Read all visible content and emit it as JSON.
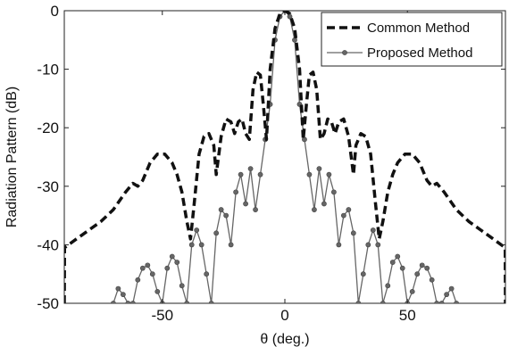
{
  "chart_data": {
    "type": "line",
    "xlabel": "θ (deg.)",
    "ylabel": "Radiation Pattern (dB)",
    "xlim": [
      -90,
      90
    ],
    "ylim": [
      -50,
      0
    ],
    "x_ticks": [
      -50,
      0,
      50
    ],
    "x_tick_labels": [
      "-50",
      "0",
      "50"
    ],
    "y_ticks": [
      0,
      -10,
      -20,
      -30,
      -40,
      -50
    ],
    "y_tick_labels": [
      "0",
      "-10",
      "-20",
      "-30",
      "-40",
      "-50"
    ],
    "grid": false,
    "legend_position": "top-right",
    "series": [
      {
        "name": "Common Method",
        "style": "dashed",
        "color": "#111111",
        "x": [
          -90,
          -89.9,
          -85,
          -80,
          -75,
          -70,
          -65,
          -62,
          -60,
          -58,
          -55,
          -52,
          -49,
          -46,
          -44,
          -42,
          -40,
          -38.5,
          -37,
          -35,
          -33,
          -31,
          -29,
          -28,
          -26,
          -24,
          -22,
          -20.5,
          -19,
          -17.5,
          -16,
          -14.5,
          -13,
          -11.5,
          -10,
          -8.8,
          -7.5,
          -6,
          -4,
          -2,
          0,
          2,
          4,
          6,
          7.5,
          8.8,
          10,
          11.5,
          13,
          14.5,
          16,
          17.5,
          19,
          20.5,
          22,
          24,
          26,
          28,
          29,
          31,
          33,
          35,
          37,
          38.5,
          40,
          42,
          44,
          46,
          49,
          52,
          55,
          58,
          60,
          62,
          65,
          70,
          75,
          80,
          85,
          89.9,
          90
        ],
        "y": [
          -50,
          -40.5,
          -39,
          -37.5,
          -36,
          -34,
          -31,
          -29.5,
          -30,
          -29,
          -26,
          -24.5,
          -24.5,
          -26,
          -28,
          -31,
          -36,
          -39,
          -33,
          -24.5,
          -21.5,
          -21,
          -23,
          -28,
          -21.5,
          -18.5,
          -19,
          -21,
          -19,
          -18.5,
          -21,
          -22,
          -13.5,
          -10.5,
          -11,
          -16,
          -22,
          -10,
          -3,
          -0.5,
          0,
          -0.5,
          -3,
          -10,
          -22,
          -16,
          -11,
          -10.5,
          -13.5,
          -22,
          -21,
          -18.5,
          -19,
          -21,
          -19,
          -18.5,
          -21.5,
          -28,
          -23,
          -21,
          -21.5,
          -24.5,
          -33,
          -39,
          -36,
          -31,
          -28,
          -26,
          -24.5,
          -24.5,
          -26,
          -29,
          -30,
          -29.5,
          -31,
          -34,
          -36,
          -37.5,
          -39,
          -40.5,
          -50
        ]
      },
      {
        "name": "Proposed Method",
        "style": "solid-markers",
        "color": "#666666",
        "x": [
          -70,
          -68,
          -66,
          -64,
          -62,
          -60,
          -58,
          -56,
          -54,
          -52,
          -50,
          -48,
          -46,
          -44,
          -42,
          -40,
          -38,
          -36,
          -34,
          -32,
          -30,
          -28,
          -26,
          -24,
          -22,
          -20,
          -18,
          -16,
          -14,
          -12,
          -10,
          -8,
          -6,
          -4,
          -2,
          0,
          2,
          4,
          6,
          8,
          10,
          12,
          14,
          16,
          18,
          20,
          22,
          24,
          26,
          28,
          30,
          32,
          34,
          36,
          38,
          40,
          42,
          44,
          46,
          48,
          50,
          52,
          54,
          56,
          58,
          60,
          62,
          64,
          66,
          68,
          70
        ],
        "y": [
          -50,
          -47.5,
          -48.5,
          -50,
          -50,
          -46,
          -44,
          -43.5,
          -45,
          -48,
          -50,
          -44,
          -42,
          -43,
          -47,
          -50,
          -40,
          -37.5,
          -40,
          -45,
          -50,
          -38,
          -34,
          -35,
          -40,
          -31,
          -28,
          -33,
          -27,
          -34,
          -28,
          -22,
          -16,
          -5,
          -1,
          0,
          -1,
          -5,
          -16,
          -22,
          -28,
          -34,
          -27,
          -33,
          -28,
          -31,
          -40,
          -35,
          -34,
          -38,
          -50,
          -45,
          -40,
          -37.5,
          -40,
          -50,
          -47,
          -43,
          -42,
          -44,
          -50,
          -48,
          -45,
          -43.5,
          -44,
          -46,
          -50,
          -50,
          -48.5,
          -47.5,
          -50
        ]
      }
    ]
  }
}
